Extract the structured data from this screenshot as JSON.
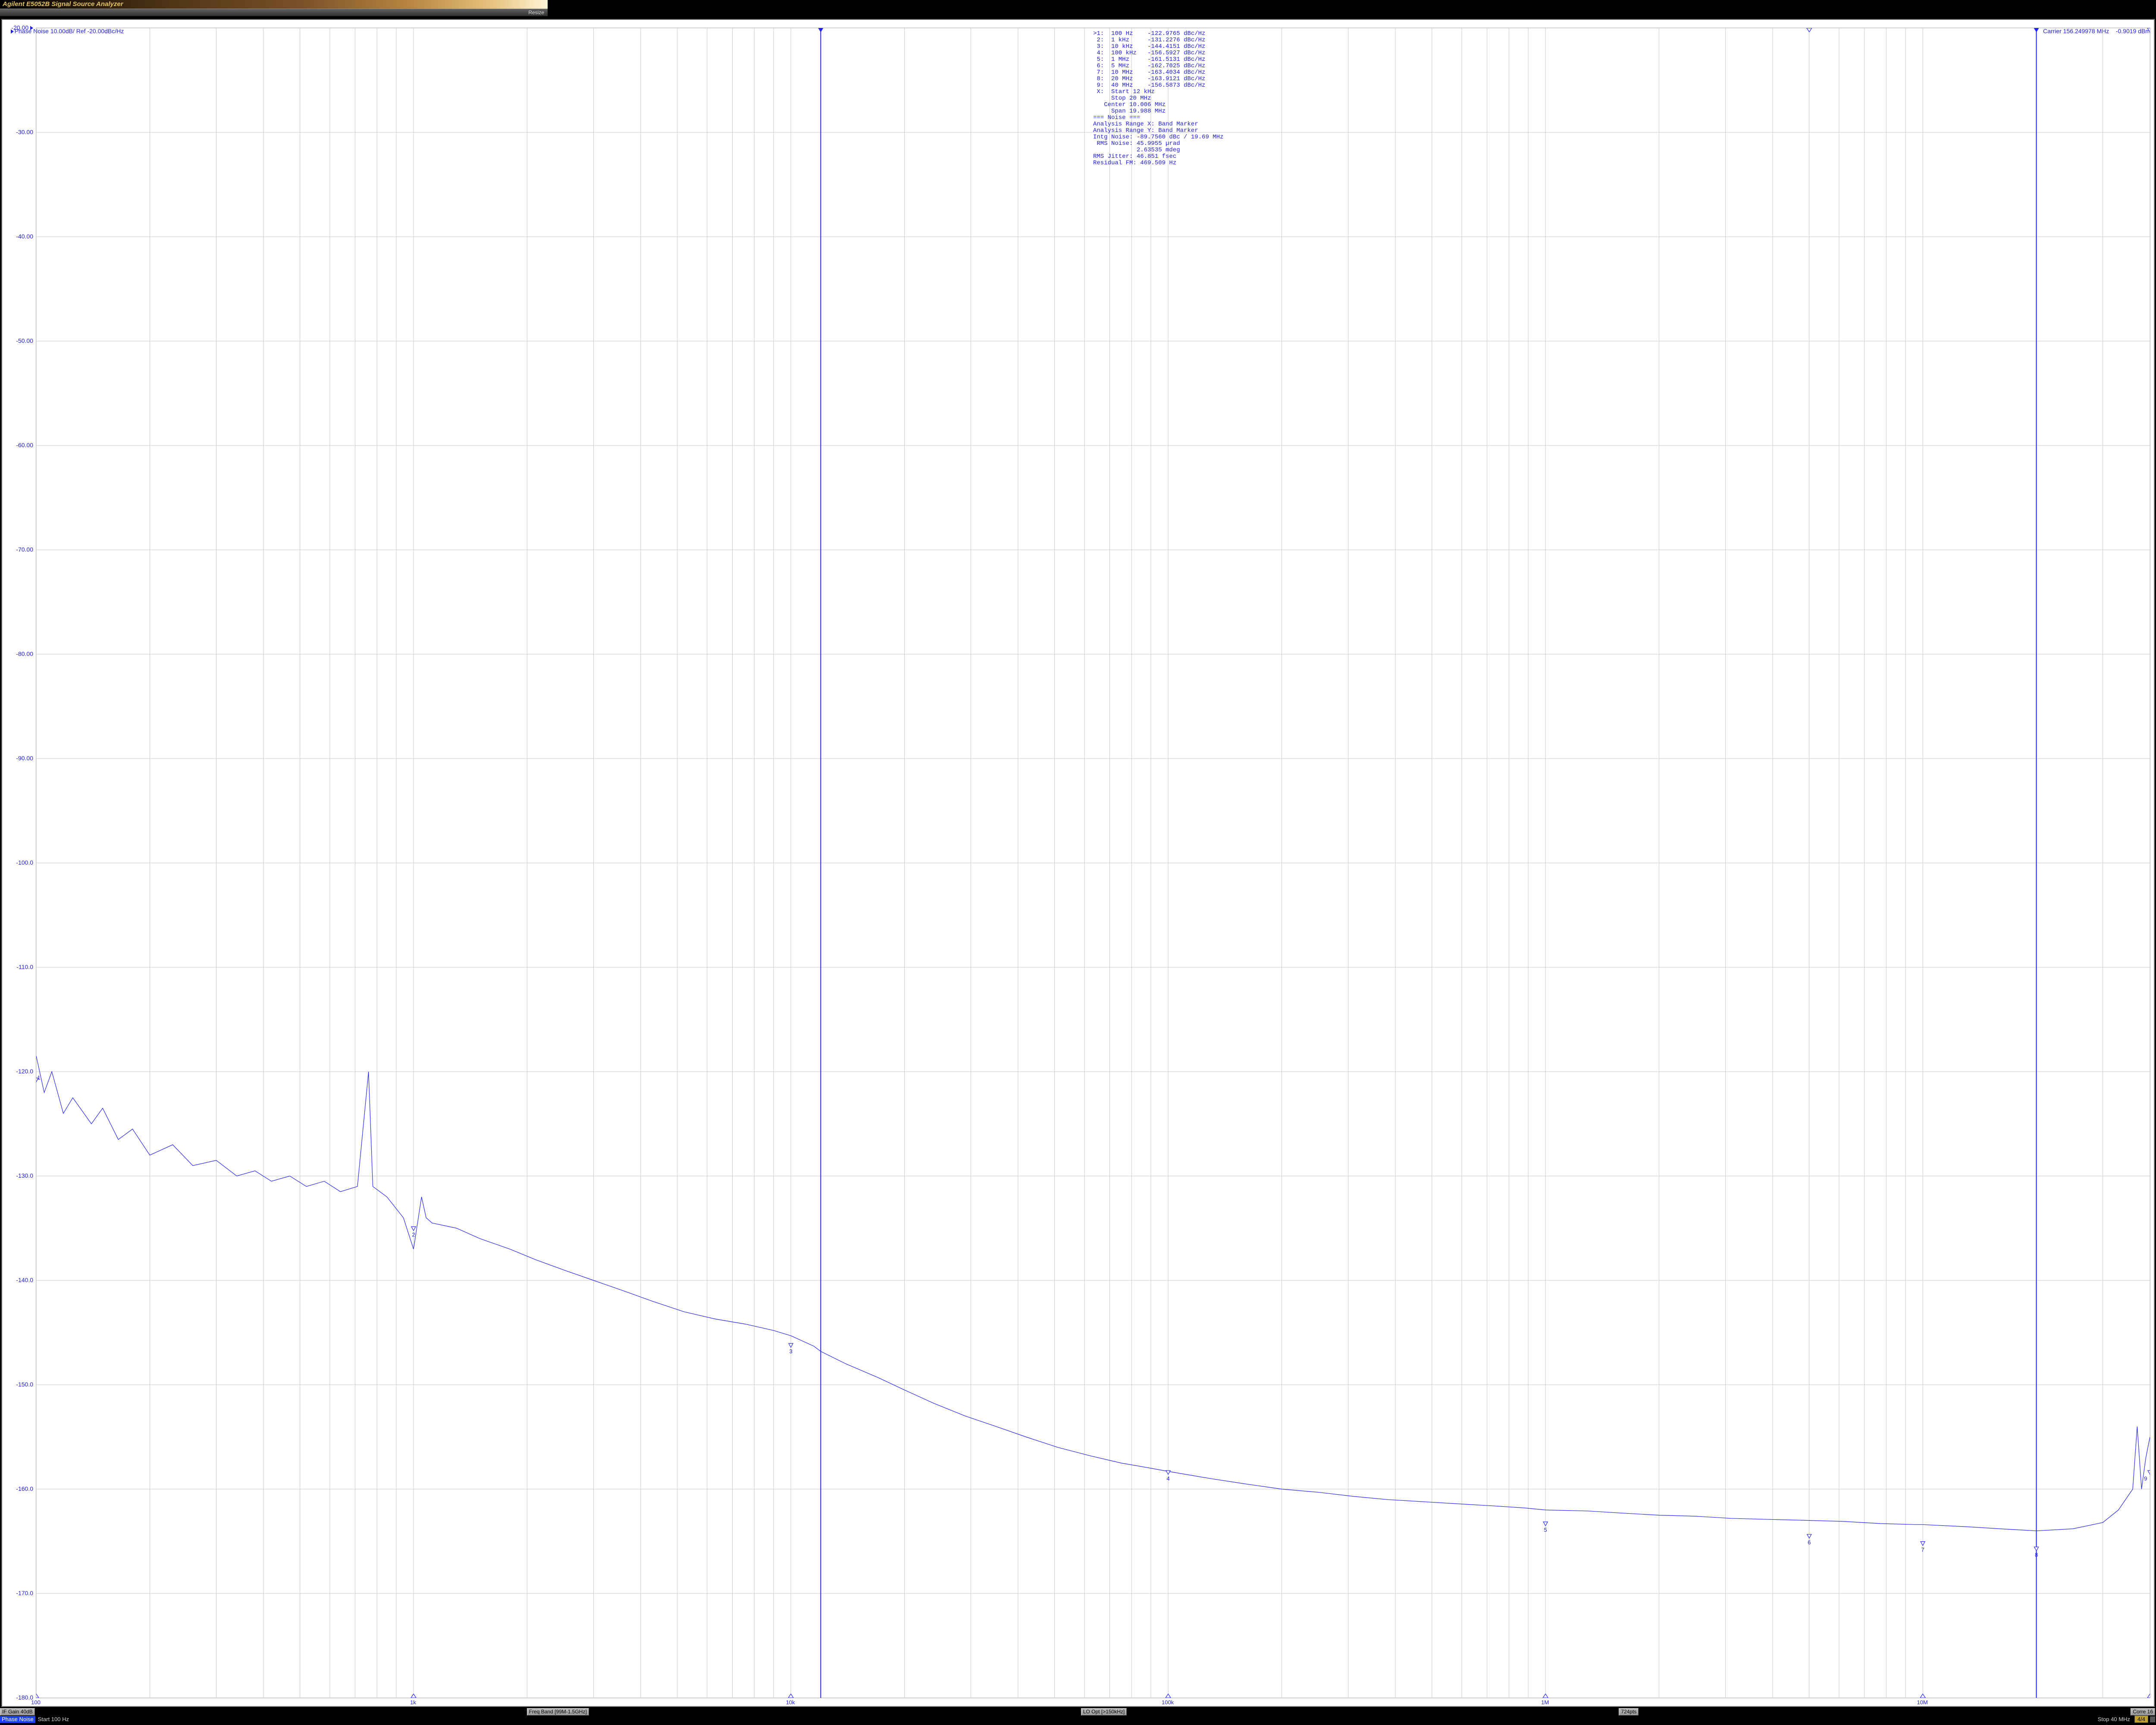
{
  "window": {
    "title": "Agilent E5052B Signal Source Analyzer",
    "resize_label": "Resize"
  },
  "header": {
    "trace_label": "Phase Noise 10.00dB/ Ref -20.00dBc/Hz",
    "carrier_label": "Carrier 156.249978 MHz    -0.9019 dBm"
  },
  "chart": {
    "type": "line-log-x",
    "background_color": "#ffffff",
    "grid_color": "#c9c9c9",
    "trace_color": "#2222ff",
    "text_color": "#2222dd",
    "font_family_mono": "Lucida Console",
    "y": {
      "min": -180,
      "max": -20,
      "step": 10,
      "labels": [
        "-20.00",
        "-30.00",
        "-40.00",
        "-50.00",
        "-60.00",
        "-70.00",
        "-80.00",
        "-90.00",
        "-100.0",
        "-110.0",
        "-120.0",
        "-130.0",
        "-140.0",
        "-150.0",
        "-160.0",
        "-170.0",
        "-180.0"
      ]
    },
    "x": {
      "log_min_hz": 100,
      "log_max_hz": 40000000,
      "decade_labels": [
        {
          "hz": 100,
          "text": "100"
        },
        {
          "hz": 1000,
          "text": "1k"
        },
        {
          "hz": 10000,
          "text": "10k"
        },
        {
          "hz": 100000,
          "text": "100k"
        },
        {
          "hz": 1000000,
          "text": "1M"
        },
        {
          "hz": 10000000,
          "text": "10M"
        }
      ]
    },
    "band_markers_hz": [
      12000,
      20000000
    ],
    "bottom_decade_triangles_hz": [
      100,
      1000,
      10000,
      100000,
      1000000,
      10000000,
      40000000
    ],
    "top_extra_triangles_hz": [
      5000000,
      40000000
    ],
    "markers": [
      {
        "n": "1",
        "hz": 100,
        "db": -122.9765,
        "tri_offset_db": 2,
        "num_dx": 6,
        "num_dy": -5
      },
      {
        "n": "2",
        "hz": 1000,
        "db": -131.2276,
        "tri_offset_db": -4,
        "num_dx": 0,
        "num_dy": 14
      },
      {
        "n": "3",
        "hz": 10000,
        "db": -144.4151,
        "tri_offset_db": -2,
        "num_dx": 0,
        "num_dy": 14
      },
      {
        "n": "4",
        "hz": 100000,
        "db": -156.5927,
        "tri_offset_db": -2,
        "num_dx": 0,
        "num_dy": 14
      },
      {
        "n": "5",
        "hz": 1000000,
        "db": -161.5131,
        "tri_offset_db": -2,
        "num_dx": 0,
        "num_dy": 14
      },
      {
        "n": "6",
        "hz": 5000000,
        "db": -162.7025,
        "tri_offset_db": -2,
        "num_dx": 0,
        "num_dy": 14
      },
      {
        "n": "7",
        "hz": 10000000,
        "db": -163.4034,
        "tri_offset_db": -2,
        "num_dx": 0,
        "num_dy": 14
      },
      {
        "n": "8",
        "hz": 20000000,
        "db": -163.9121,
        "tri_offset_db": -2,
        "num_dx": 0,
        "num_dy": 14
      },
      {
        "n": "9",
        "hz": 40000000,
        "db": -156.5873,
        "tri_offset_db": -2,
        "num_dx": -10,
        "num_dy": 14
      }
    ],
    "trace_points_hz_db": [
      [
        100,
        -118.5
      ],
      [
        105,
        -122
      ],
      [
        110,
        -120
      ],
      [
        118,
        -124
      ],
      [
        125,
        -122.5
      ],
      [
        140,
        -125
      ],
      [
        150,
        -123.5
      ],
      [
        165,
        -126.5
      ],
      [
        180,
        -125.5
      ],
      [
        200,
        -128
      ],
      [
        230,
        -127
      ],
      [
        260,
        -129
      ],
      [
        300,
        -128.5
      ],
      [
        340,
        -130
      ],
      [
        380,
        -129.5
      ],
      [
        420,
        -130.5
      ],
      [
        470,
        -130
      ],
      [
        520,
        -131
      ],
      [
        580,
        -130.5
      ],
      [
        640,
        -131.5
      ],
      [
        710,
        -131
      ],
      [
        760,
        -120
      ],
      [
        780,
        -131
      ],
      [
        850,
        -132
      ],
      [
        940,
        -134
      ],
      [
        1000,
        -137
      ],
      [
        1050,
        -132
      ],
      [
        1080,
        -134
      ],
      [
        1120,
        -134.5
      ],
      [
        1300,
        -135
      ],
      [
        1500,
        -136
      ],
      [
        1800,
        -137
      ],
      [
        2100,
        -138
      ],
      [
        2500,
        -139
      ],
      [
        3000,
        -140
      ],
      [
        3600,
        -141
      ],
      [
        4300,
        -142
      ],
      [
        5200,
        -143
      ],
      [
        6300,
        -143.7
      ],
      [
        7600,
        -144.2
      ],
      [
        9000,
        -144.8
      ],
      [
        10000,
        -145.3
      ],
      [
        11500,
        -146.3
      ],
      [
        12000,
        -146.8
      ],
      [
        14000,
        -148
      ],
      [
        17000,
        -149.3
      ],
      [
        20000,
        -150.5
      ],
      [
        24000,
        -151.8
      ],
      [
        29000,
        -153
      ],
      [
        35000,
        -154
      ],
      [
        42000,
        -155
      ],
      [
        51000,
        -156
      ],
      [
        62000,
        -156.8
      ],
      [
        75000,
        -157.5
      ],
      [
        90000,
        -158
      ],
      [
        100000,
        -158.3
      ],
      [
        130000,
        -159
      ],
      [
        160000,
        -159.5
      ],
      [
        200000,
        -160
      ],
      [
        250000,
        -160.3
      ],
      [
        310000,
        -160.7
      ],
      [
        380000,
        -161
      ],
      [
        470000,
        -161.2
      ],
      [
        580000,
        -161.4
      ],
      [
        720000,
        -161.6
      ],
      [
        880000,
        -161.8
      ],
      [
        1000000,
        -162
      ],
      [
        1300000,
        -162.1
      ],
      [
        1600000,
        -162.3
      ],
      [
        2000000,
        -162.5
      ],
      [
        2500000,
        -162.6
      ],
      [
        3100000,
        -162.8
      ],
      [
        3900000,
        -162.9
      ],
      [
        5000000,
        -163
      ],
      [
        6200000,
        -163.1
      ],
      [
        7700000,
        -163.3
      ],
      [
        9600000,
        -163.4
      ],
      [
        10000000,
        -163.4
      ],
      [
        13000000,
        -163.6
      ],
      [
        16000000,
        -163.8
      ],
      [
        20000000,
        -164
      ],
      [
        25000000,
        -163.8
      ],
      [
        30000000,
        -163.2
      ],
      [
        33000000,
        -162
      ],
      [
        36000000,
        -160
      ],
      [
        37000000,
        -154
      ],
      [
        38000000,
        -160
      ],
      [
        39000000,
        -157
      ],
      [
        40000000,
        -155
      ]
    ]
  },
  "marker_table": {
    "rows": [
      ">1:  100 Hz    -122.9765 dBc/Hz",
      " 2:  1 kHz     -131.2276 dBc/Hz",
      " 3:  10 kHz    -144.4151 dBc/Hz",
      " 4:  100 kHz   -156.5927 dBc/Hz",
      " 5:  1 MHz     -161.5131 dBc/Hz",
      " 6:  5 MHz     -162.7025 dBc/Hz",
      " 7:  10 MHz    -163.4034 dBc/Hz",
      " 8:  20 MHz    -163.9121 dBc/Hz",
      " 9:  40 MHz    -156.5873 dBc/Hz",
      " X:  Start 12 kHz",
      "     Stop 20 MHz",
      "   Center 10.006 MHz",
      "     Span 19.988 MHz",
      "=== Noise ===",
      "Analysis Range X: Band Marker",
      "Analysis Range Y: Band Marker",
      "Intg Noise: -89.7560 dBc / 19.69 MHz",
      " RMS Noise: 45.9955 µrad",
      "            2.63535 mdeg",
      "RMS Jitter: 46.851 fsec",
      "Residual FM: 469.509 Hz"
    ]
  },
  "status1": {
    "if_gain": "IF Gain 40dB",
    "freq_band": "Freq Band [99M-1.5GHz]",
    "lo_opt": "LO Opt [>150kHz]",
    "points": "724pts",
    "corr": "Corre 16"
  },
  "status2": {
    "mode_chip": "Phase Noise",
    "start": "Start 100 Hz",
    "stop": "Stop 40 MHz",
    "page": "4/4"
  }
}
